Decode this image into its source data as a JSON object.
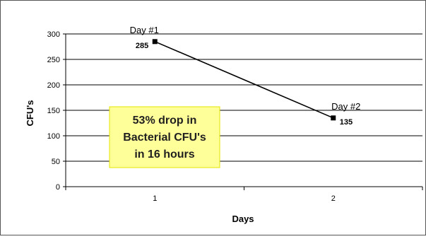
{
  "chart_data": {
    "type": "line",
    "title": "",
    "xlabel": "Days",
    "ylabel": "CFU's",
    "categories": [
      "1",
      "2"
    ],
    "series": [
      {
        "values": [
          285,
          135
        ],
        "color": "#000000"
      }
    ],
    "point_labels": [
      "285",
      "135"
    ],
    "point_tags": [
      "Day #1",
      "Day #2"
    ],
    "yticks": [
      "0",
      "50",
      "100",
      "150",
      "200",
      "250",
      "300"
    ],
    "ylim": [
      0,
      300
    ],
    "grid": true,
    "annotation": {
      "lines": [
        "53% drop in",
        "Bacterial CFU's",
        "in 16 hours"
      ],
      "background": "#ffff99",
      "border": "#e6e600"
    }
  }
}
